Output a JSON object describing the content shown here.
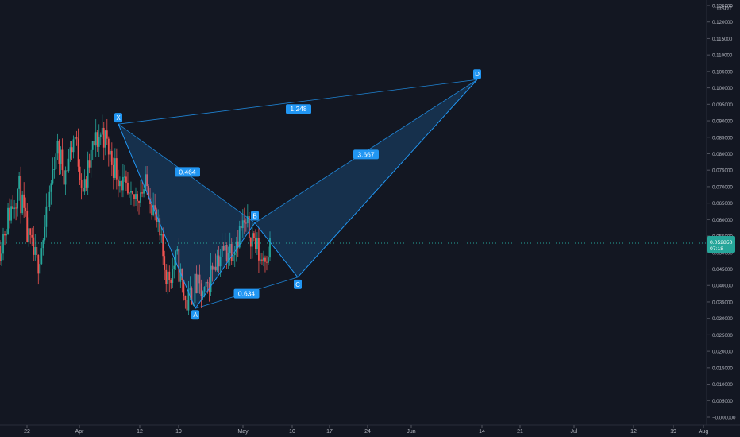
{
  "chart_data": {
    "type": "candlestick",
    "currency": "USDT",
    "ylim": [
      0,
      0.125
    ],
    "y_ticks": [
      "0.125000",
      "0.120000",
      "0.115000",
      "0.110000",
      "0.105000",
      "0.100000",
      "0.095000",
      "0.090000",
      "0.085000",
      "0.080000",
      "0.075000",
      "0.070000",
      "0.065000",
      "0.060000",
      "0.055000",
      "0.050000",
      "0.045000",
      "0.040000",
      "0.035000",
      "0.030000",
      "0.025000",
      "0.020000",
      "0.015000",
      "0.010000",
      "0.005000",
      "−0.000000"
    ],
    "x_ticks": [
      "22",
      "Apr",
      "12",
      "19",
      "May",
      "10",
      "17",
      "24",
      "Jun",
      "14",
      "21",
      "Jul",
      "12",
      "19",
      "Aug"
    ],
    "current_price": {
      "value": 0.05285,
      "label": "0.052850",
      "countdown": "07:18"
    },
    "pattern": {
      "points": [
        {
          "name": "X",
          "price": 0.089
        },
        {
          "name": "A",
          "price": 0.033
        },
        {
          "name": "B",
          "price": 0.059
        },
        {
          "name": "C",
          "price": 0.0425
        },
        {
          "name": "D",
          "price": 0.1025
        }
      ],
      "ratios": [
        "0.464",
        "0.634",
        "3.667",
        "1.248"
      ]
    },
    "price_waypoints": [
      0.052,
      0.062,
      0.07,
      0.054,
      0.046,
      0.06,
      0.082,
      0.074,
      0.086,
      0.068,
      0.082,
      0.087,
      0.078,
      0.072,
      0.064,
      0.069,
      0.07,
      0.056,
      0.042,
      0.048,
      0.034,
      0.04,
      0.036,
      0.048,
      0.05,
      0.052,
      0.058,
      0.056,
      0.048,
      0.052
    ],
    "grid": false,
    "colors": {
      "up": "#26a69a",
      "down": "#ef5350",
      "pattern": "#2196f3",
      "background": "#131722",
      "price_tag": "#26a69a"
    }
  }
}
